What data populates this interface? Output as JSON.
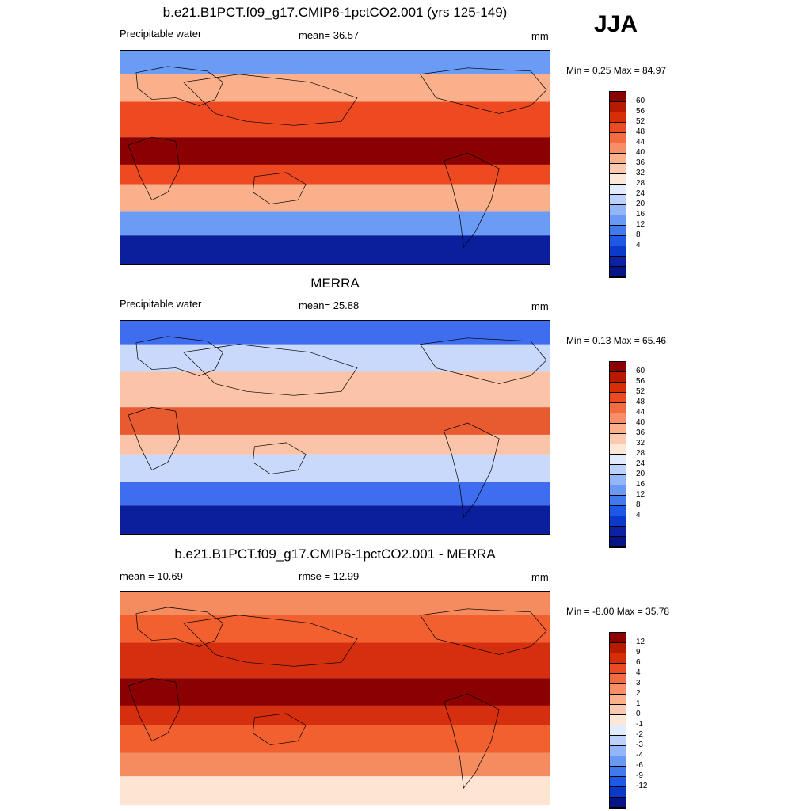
{
  "season": "JJA",
  "panels": [
    {
      "title": "b.e21.B1PCT.f09_g17.CMIP6-1pctCO2.001 (yrs 125-149)",
      "left_label": "Precipitable water",
      "center_label": "mean=  36.57",
      "units": "mm",
      "minmax": "Min =   0.25 Max =  84.97",
      "map_colors": {
        "band_eq": "#8b0000",
        "mid": "#ee4a22",
        "subtrop": "#fbb08c",
        "high": "#6a9bf5",
        "polar": "#0b1f9c"
      }
    },
    {
      "title": "MERRA",
      "left_label": "Precipitable water",
      "center_label": "mean=  25.88",
      "units": "mm",
      "minmax": "Min =   0.13 Max =  65.46",
      "map_colors": {
        "band_eq": "#e85a30",
        "mid": "#fbc3a8",
        "subtrop": "#c8d9fb",
        "high": "#3f6df0",
        "polar": "#0b1f9c"
      }
    },
    {
      "title": "b.e21.B1PCT.f09_g17.CMIP6-1pctCO2.001 - MERRA",
      "left_label": "mean =  10.69",
      "center_label": "rmse =  12.99",
      "units": "mm",
      "minmax": "Min =  -8.00 Max =  35.78",
      "map_colors": {
        "band_eq": "#8b0000",
        "mid": "#d62f10",
        "subtrop": "#f1602e",
        "high": "#f58c5f",
        "polar": "#fde4d3"
      }
    }
  ],
  "colorbar_abs": {
    "colors": [
      "#8b0000",
      "#b81a00",
      "#d82e08",
      "#ec4a22",
      "#f36c40",
      "#f78e66",
      "#fbb08c",
      "#fbc9ad",
      "#fde8d8",
      "#e3ecfd",
      "#bcd2fb",
      "#93b6f8",
      "#6a99f4",
      "#4179ef",
      "#1e58e6",
      "#0b39c9",
      "#0b23a3",
      "#061585"
    ],
    "labels": [
      "60",
      "56",
      "52",
      "48",
      "44",
      "40",
      "36",
      "32",
      "28",
      "24",
      "20",
      "16",
      "12",
      "8",
      "4"
    ]
  },
  "colorbar_diff": {
    "colors": [
      "#8b0000",
      "#b81a00",
      "#d82e08",
      "#ec4a22",
      "#f36c40",
      "#f78e66",
      "#fbb08c",
      "#fbc9ad",
      "#fde8d8",
      "#e3ecfd",
      "#bcd2fb",
      "#93b6f8",
      "#6a99f4",
      "#4179ef",
      "#1e58e6",
      "#0b39c9",
      "#061585"
    ],
    "labels": [
      "12",
      "9",
      "6",
      "4",
      "3",
      "2",
      "1",
      "0",
      "-1",
      "-2",
      "-3",
      "-4",
      "-6",
      "-9",
      "-12"
    ]
  }
}
